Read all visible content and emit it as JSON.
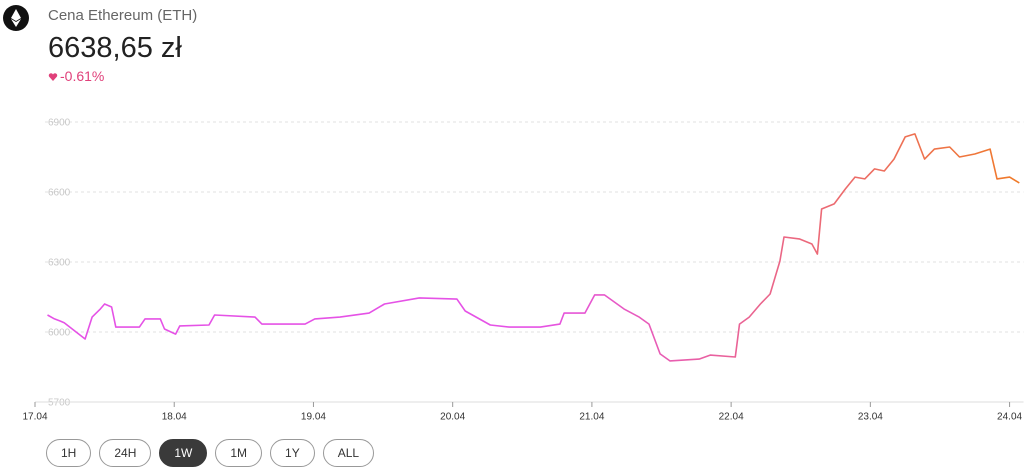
{
  "header": {
    "title": "Cena Ethereum (ETH)",
    "price": "6638,65 zł",
    "change": "-0.61%"
  },
  "chart_data": {
    "type": "line",
    "x": [
      0.09,
      0.14,
      0.18,
      0.21,
      0.36,
      0.41,
      0.47,
      0.5,
      0.55,
      0.58,
      0.75,
      0.79,
      0.9,
      0.93,
      1.01,
      1.04,
      1.25,
      1.29,
      1.58,
      1.63,
      1.94,
      2.01,
      2.19,
      2.4,
      2.51,
      2.76,
      3.03,
      3.09,
      3.27,
      3.41,
      3.63,
      3.77,
      3.8,
      3.95,
      4.02,
      4.09,
      4.23,
      4.34,
      4.41,
      4.49,
      4.56,
      4.77,
      4.85,
      5.03,
      5.06,
      5.13,
      5.21,
      5.28,
      5.35,
      5.38,
      5.49,
      5.58,
      5.62,
      5.65,
      5.74,
      5.82,
      5.89,
      5.96,
      6.03,
      6.1,
      6.17,
      6.25,
      6.32,
      6.39,
      6.46,
      6.57,
      6.64,
      6.75,
      6.86,
      6.91,
      7.0,
      7.07
    ],
    "series": [
      {
        "name": "ETH",
        "colors": [
          "#e552e6",
          "#e552e6",
          "#f07a28"
        ],
        "values": [
          6073,
          6056,
          6047,
          6040,
          5970,
          6064,
          6099,
          6120,
          6107,
          6021,
          6021,
          6056,
          6056,
          6013,
          5991,
          6026,
          6030,
          6073,
          6064,
          6034,
          6034,
          6056,
          6064,
          6081,
          6120,
          6146,
          6141,
          6090,
          6030,
          6021,
          6021,
          6034,
          6081,
          6081,
          6159,
          6159,
          6099,
          6064,
          6034,
          5906,
          5876,
          5884,
          5901,
          5893,
          6034,
          6064,
          6120,
          6163,
          6304,
          6407,
          6399,
          6377,
          6334,
          6527,
          6549,
          6613,
          6664,
          6656,
          6699,
          6690,
          6741,
          6836,
          6849,
          6741,
          6784,
          6793,
          6750,
          6763,
          6784,
          6656,
          6664,
          6639
        ]
      }
    ],
    "xlim": [
      0,
      7.1
    ],
    "xticks": [
      {
        "value": 0,
        "label": "17.04"
      },
      {
        "value": 1,
        "label": "18.04"
      },
      {
        "value": 2,
        "label": "19.04"
      },
      {
        "value": 3,
        "label": "20.04"
      },
      {
        "value": 4,
        "label": "21.04"
      },
      {
        "value": 5,
        "label": "22.04"
      },
      {
        "value": 6,
        "label": "23.04"
      },
      {
        "value": 7,
        "label": "24.04"
      }
    ],
    "ylim": [
      5700,
      6900
    ],
    "yticks": [
      5700,
      6000,
      6300,
      6600,
      6900
    ],
    "grid": true
  },
  "range_buttons": {
    "options": [
      "1H",
      "24H",
      "1W",
      "1M",
      "1Y",
      "ALL"
    ],
    "selected": 2
  }
}
